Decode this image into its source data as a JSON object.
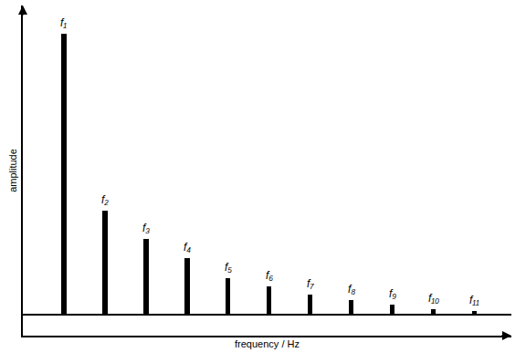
{
  "chart_data": {
    "type": "bar",
    "x_label": "frequency / Hz",
    "y_label": "amplitude",
    "x": [
      1,
      2,
      3,
      4,
      5,
      6,
      7,
      8,
      9,
      10,
      11
    ],
    "values": [
      1.0,
      0.37,
      0.27,
      0.2,
      0.13,
      0.1,
      0.07,
      0.05,
      0.035,
      0.02,
      0.013
    ],
    "annotations": [
      "f₁",
      "f₂",
      "f₃",
      "f₄",
      "f₅",
      "f₆",
      "f₇",
      "f₈",
      "f₉",
      "f₁₀",
      "f₁₁"
    ],
    "color": "#000000",
    "xlim": [
      0,
      11.9
    ],
    "ylim": [
      -0.075,
      1.1
    ],
    "xticks": [],
    "yticks": [],
    "grid": false,
    "tick_labels": false
  }
}
